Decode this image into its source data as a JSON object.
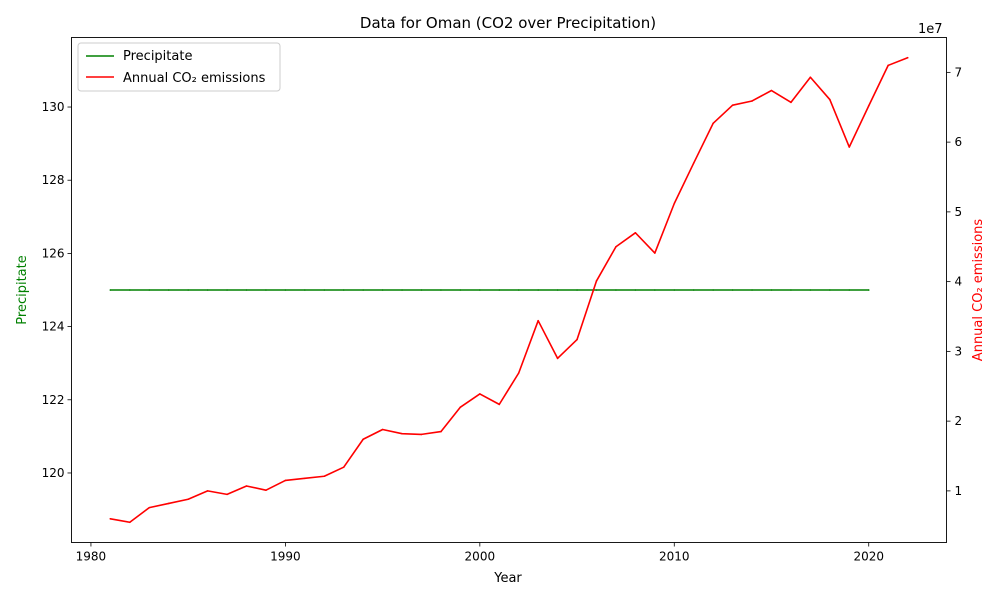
{
  "chart_data": {
    "type": "line",
    "title": "Data for Oman (CO2 over Precipitation)",
    "xlabel": "Year",
    "ylabel_left": "Precipitate",
    "ylabel_right": "Annual CO₂ emissions",
    "xlim": [
      1979,
      2024
    ],
    "ylim_left": [
      118.1,
      131.9
    ],
    "ylim_right": [
      2600000,
      75000000
    ],
    "x_ticks": [
      1980,
      1990,
      2000,
      2010,
      2020
    ],
    "y_left_ticks": [
      120,
      122,
      124,
      126,
      128,
      130
    ],
    "y_right_ticks": [
      10000000,
      20000000,
      30000000,
      40000000,
      50000000,
      60000000,
      70000000
    ],
    "y_right_tick_labels": [
      "1",
      "2",
      "3",
      "4",
      "5",
      "6",
      "7"
    ],
    "y_right_offset_label": "1e7",
    "legend_position": "top-left",
    "grid": false,
    "series": [
      {
        "name": "Precipitate",
        "axis": "left",
        "color": "#008000",
        "x": [
          1981,
          1982,
          1983,
          1984,
          1985,
          1986,
          1987,
          1988,
          1989,
          1990,
          1991,
          1992,
          1993,
          1994,
          1995,
          1996,
          1997,
          1998,
          1999,
          2000,
          2001,
          2002,
          2003,
          2004,
          2005,
          2006,
          2007,
          2008,
          2009,
          2010,
          2011,
          2012,
          2013,
          2014,
          2015,
          2016,
          2017,
          2018,
          2019,
          2020
        ],
        "values": [
          125,
          125,
          125,
          125,
          125,
          125,
          125,
          125,
          125,
          125,
          125,
          125,
          125,
          125,
          125,
          125,
          125,
          125,
          125,
          125,
          125,
          125,
          125,
          125,
          125,
          125,
          125,
          125,
          125,
          125,
          125,
          125,
          125,
          125,
          125,
          125,
          125,
          125,
          125,
          125
        ]
      },
      {
        "name": "Annual CO₂ emissions",
        "axis": "right",
        "color": "#ff0000",
        "x": [
          1981,
          1982,
          1983,
          1984,
          1985,
          1986,
          1987,
          1988,
          1989,
          1990,
          1991,
          1992,
          1993,
          1994,
          1995,
          1996,
          1997,
          1998,
          1999,
          2000,
          2001,
          2002,
          2003,
          2004,
          2005,
          2006,
          2007,
          2008,
          2009,
          2010,
          2011,
          2012,
          2013,
          2014,
          2015,
          2016,
          2017,
          2018,
          2019,
          2020,
          2021,
          2022
        ],
        "values": [
          6000000,
          5500000,
          7600000,
          8200000,
          8800000,
          10000000,
          9500000,
          10700000,
          10100000,
          11500000,
          11800000,
          12100000,
          13400000,
          17400000,
          18800000,
          18200000,
          18100000,
          18500000,
          22000000,
          23900000,
          22400000,
          26900000,
          34400000,
          29000000,
          31700000,
          40100000,
          45000000,
          47000000,
          44100000,
          51200000,
          57000000,
          62700000,
          65300000,
          65900000,
          67400000,
          65700000,
          69300000,
          66100000,
          59300000,
          65200000,
          71000000,
          72100000
        ]
      }
    ]
  }
}
